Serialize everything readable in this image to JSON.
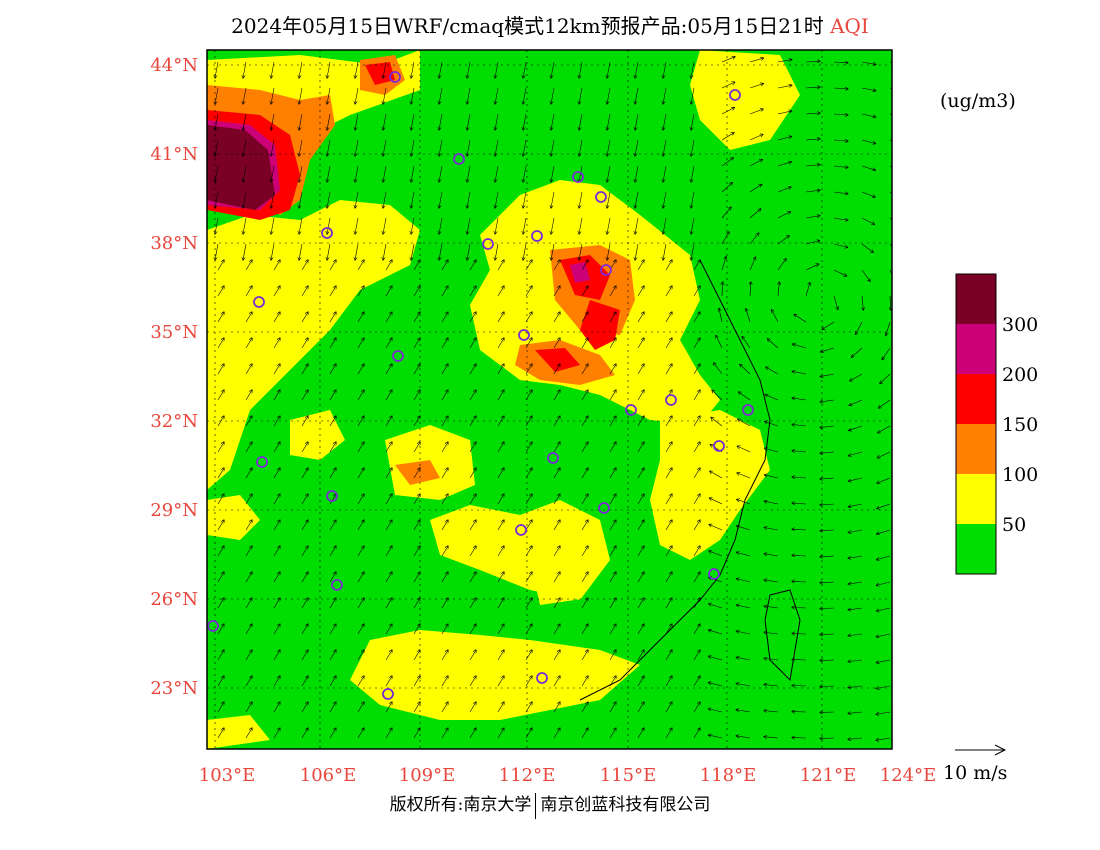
{
  "title": {
    "main": "2024年05月15日WRF/cmaq模式12km预报产品:05月15日21时",
    "variable": "AQI"
  },
  "unit_label": "(ug/m3)",
  "lat_labels": [
    "44°N",
    "41°N",
    "38°N",
    "35°N",
    "32°N",
    "29°N",
    "26°N",
    "23°N"
  ],
  "lon_labels": [
    "103°E",
    "106°E",
    "109°E",
    "112°E",
    "115°E",
    "118°E",
    "121°E",
    "124°E"
  ],
  "colorbar": {
    "levels": [
      "300",
      "200",
      "150",
      "100",
      "50"
    ],
    "colors": [
      "#7a0026",
      "#cc0077",
      "#ff0000",
      "#ff7f00",
      "#ffff00",
      "#00dd00"
    ]
  },
  "wind_reference": "10 m/s",
  "footer": {
    "left": "版权所有:南京大学",
    "right": "南京创蓝科技有限公司"
  },
  "palette": {
    "good": "#00dd00",
    "moderate": "#ffff00",
    "usg": "#ff7f00",
    "unhealthy": "#ff0000",
    "very_unhealthy": "#cc0077",
    "hazardous": "#7a0026"
  }
}
